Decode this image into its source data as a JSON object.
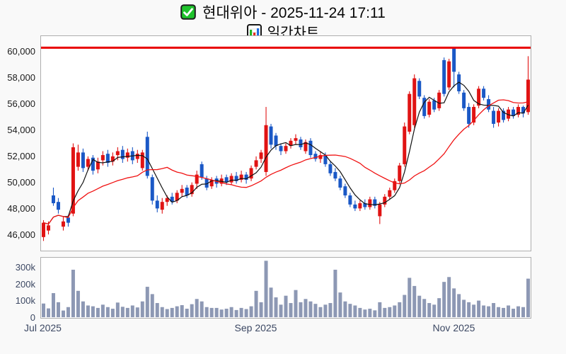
{
  "header": {
    "title": "현대위아 - 2025-11-24 17:11",
    "subtitle": "일간차트",
    "checkbox_icon": "green-checked-checkbox",
    "subtitle_icon": "bar-chart-icon"
  },
  "chart_data": {
    "type": "candlestick",
    "title": "현대위아 - 2025-11-24 17:11",
    "subtitle": "일간차트",
    "legend_position": "none",
    "grid": "off",
    "price_axis": {
      "tick_values": [
        60000,
        58000,
        56000,
        54000,
        52000,
        50000,
        48000,
        46000
      ],
      "tick_labels": [
        "60,000",
        "58,000",
        "56,000",
        "54,000",
        "52,000",
        "50,000",
        "48,000",
        "46,000"
      ],
      "min": 44750,
      "max": 61240
    },
    "volume_axis": {
      "tick_values": [
        300,
        200,
        100,
        0
      ],
      "tick_labels": [
        "300k",
        "200k",
        "100k",
        "0"
      ],
      "max_k": 364
    },
    "x_axis": {
      "tick_labels": [
        "Jul 2025",
        "Sep 2025",
        "Nov 2025"
      ],
      "tick_indices": [
        0,
        43,
        83
      ]
    },
    "resistance_line": 60350,
    "moving_averages": [
      {
        "name": "fast-ma",
        "period": 5,
        "color": "#111111"
      },
      {
        "name": "slow-ma",
        "period": 20,
        "color": "#f01212"
      }
    ],
    "colors": {
      "up": "#e01313",
      "down": "#1a58c6",
      "volume_bar": "#8d98b4",
      "resistance": "#e80000",
      "checkbox_green": "#1fc32c",
      "icon_bar_green": "#21b521",
      "icon_bar_red": "#e03020",
      "icon_bar_blue": "#1e6ce0"
    },
    "candles": {
      "open": [
        45800,
        46300,
        49000,
        48500,
        46600,
        47300,
        47600,
        51200,
        52300,
        51200,
        51900,
        51000,
        51700,
        52200,
        51600,
        52100,
        52500,
        51900,
        52400,
        51800,
        51100,
        53500,
        50400,
        48600,
        47900,
        48500,
        48900,
        48600,
        49200,
        49600,
        49100,
        49900,
        51400,
        50300,
        49700,
        50300,
        49900,
        50400,
        50000,
        50500,
        50200,
        50600,
        50300,
        51200,
        51800,
        50800,
        54300,
        53600,
        52800,
        52400,
        52800,
        53200,
        53300,
        52400,
        53200,
        52200,
        51800,
        52100,
        51400,
        50800,
        50300,
        49700,
        49000,
        48300,
        48000,
        48400,
        48100,
        48700,
        47400,
        48300,
        48900,
        49400,
        50100,
        51400,
        53900,
        54400,
        57800,
        56500,
        55200,
        56300,
        55700,
        59400,
        57300,
        60300,
        58300,
        56900,
        55800,
        54600,
        55900,
        57200,
        56400,
        55500,
        54600,
        55500,
        54900,
        55600,
        55200,
        55800,
        55400
      ],
      "high": [
        47100,
        47000,
        49600,
        48800,
        47400,
        47500,
        53000,
        52900,
        52600,
        52000,
        52100,
        51900,
        52400,
        52500,
        52300,
        52700,
        52800,
        52600,
        52700,
        52500,
        52500,
        53900,
        50600,
        49000,
        48800,
        49000,
        49200,
        49400,
        49800,
        49800,
        50000,
        50900,
        51600,
        50500,
        50400,
        50500,
        50600,
        50600,
        50700,
        50800,
        50900,
        50800,
        51300,
        52000,
        52500,
        55800,
        54500,
        53800,
        53000,
        53000,
        53400,
        53700,
        53500,
        53300,
        53400,
        52400,
        52400,
        52300,
        51600,
        51100,
        50500,
        49900,
        49200,
        48600,
        48600,
        48700,
        48900,
        48900,
        48500,
        49100,
        49600,
        50300,
        51500,
        54600,
        57000,
        58300,
        58000,
        56700,
        56400,
        56500,
        57100,
        59600,
        59500,
        60400,
        58500,
        57100,
        56100,
        56000,
        57400,
        57400,
        56700,
        55800,
        55700,
        55700,
        55800,
        55800,
        56000,
        55900,
        59700
      ],
      "low": [
        45500,
        46000,
        48200,
        47600,
        46300,
        46600,
        47400,
        50900,
        50800,
        50900,
        50600,
        50700,
        51300,
        51200,
        51300,
        51700,
        51500,
        51600,
        51400,
        51500,
        50900,
        50300,
        48300,
        47700,
        47600,
        48200,
        48300,
        48400,
        48900,
        48800,
        48900,
        49500,
        50200,
        49400,
        49500,
        49600,
        49700,
        49800,
        49800,
        49900,
        50000,
        49900,
        50100,
        51000,
        51500,
        50500,
        52600,
        52500,
        52100,
        52200,
        52600,
        52900,
        52500,
        52200,
        51900,
        51600,
        51500,
        51200,
        50500,
        50100,
        49400,
        48800,
        48100,
        47800,
        47800,
        47900,
        47900,
        48000,
        46800,
        48100,
        48700,
        49200,
        49900,
        51200,
        53700,
        54200,
        56400,
        54900,
        55000,
        55400,
        55500,
        56600,
        57100,
        57300,
        56800,
        55500,
        54200,
        54400,
        55700,
        56300,
        55400,
        54200,
        54300,
        54600,
        54700,
        54900,
        55000,
        55000,
        55200
      ],
      "close": [
        46900,
        46700,
        48400,
        47900,
        47000,
        46900,
        52700,
        52300,
        51100,
        51800,
        50900,
        51600,
        52100,
        51500,
        52000,
        52400,
        51800,
        52300,
        51700,
        52200,
        52300,
        50500,
        48600,
        48000,
        48500,
        48800,
        48500,
        49200,
        49500,
        49000,
        49800,
        50600,
        50400,
        49600,
        50200,
        49900,
        50300,
        50000,
        50500,
        50100,
        50600,
        50200,
        51100,
        51700,
        52300,
        54400,
        52900,
        52800,
        52400,
        52800,
        53200,
        53400,
        52700,
        53100,
        52100,
        51800,
        52100,
        51400,
        50700,
        50300,
        49600,
        49000,
        48300,
        48000,
        48400,
        48100,
        48700,
        48200,
        48300,
        48900,
        49400,
        50100,
        51300,
        54300,
        56800,
        58000,
        56600,
        55100,
        56200,
        55600,
        56900,
        56800,
        59300,
        58500,
        57000,
        55700,
        54500,
        55800,
        57200,
        56500,
        55600,
        54500,
        55500,
        54800,
        55600,
        55100,
        55800,
        55300,
        57900
      ]
    },
    "volume_k": [
      82,
      52,
      146,
      90,
      39,
      60,
      290,
      160,
      95,
      70,
      65,
      55,
      75,
      60,
      50,
      88,
      62,
      55,
      70,
      58,
      95,
      185,
      140,
      85,
      60,
      48,
      55,
      65,
      72,
      50,
      78,
      110,
      95,
      60,
      55,
      55,
      45,
      50,
      60,
      42,
      55,
      48,
      65,
      160,
      90,
      345,
      180,
      120,
      75,
      130,
      85,
      165,
      90,
      110,
      95,
      80,
      60,
      75,
      85,
      290,
      150,
      95,
      80,
      70,
      55,
      45,
      50,
      40,
      90,
      55,
      60,
      70,
      90,
      135,
      240,
      190,
      130,
      110,
      85,
      75,
      115,
      215,
      245,
      175,
      140,
      105,
      90,
      75,
      100,
      70,
      65,
      85,
      60,
      55,
      70,
      50,
      65,
      60,
      235
    ]
  }
}
